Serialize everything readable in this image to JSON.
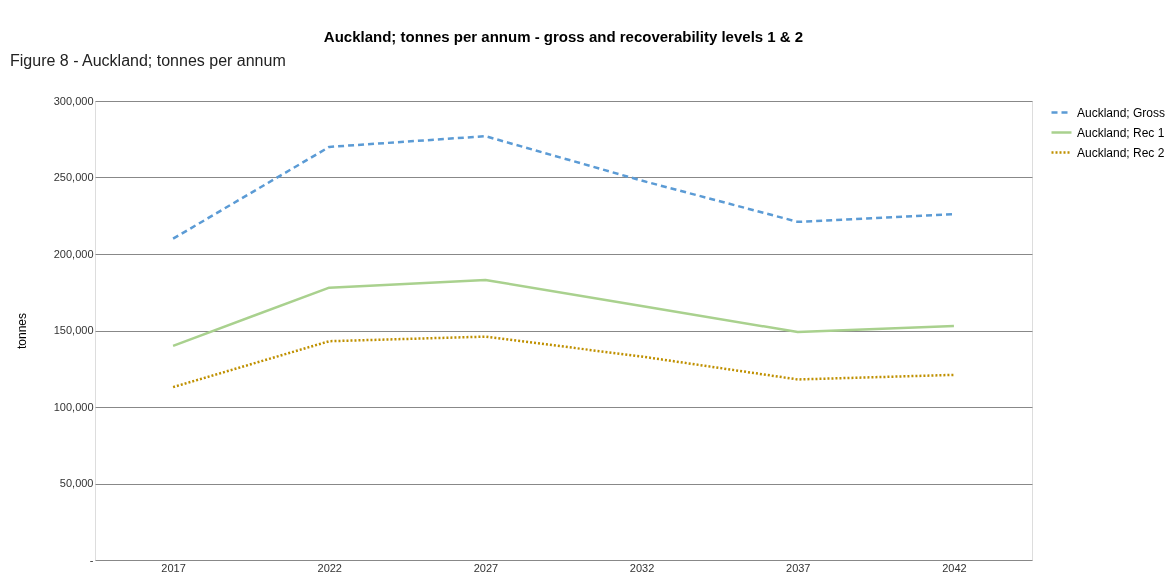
{
  "chart_data": {
    "type": "line",
    "title": "Auckland; tonnes per annum - gross and recoverability levels 1 & 2",
    "ylabel": "tonnes",
    "annotations": [
      "Figure 8 - Auckland; tonnes per annum"
    ],
    "categories": [
      "2017",
      "2022",
      "2027",
      "2032",
      "2037",
      "2042"
    ],
    "series": [
      {
        "name": "Auckland; Gross",
        "color": "#5b9bd5",
        "line_style": "dashed",
        "values": [
          210000,
          270000,
          277000,
          248000,
          221000,
          226000
        ]
      },
      {
        "name": "Auckland; Rec 1",
        "color": "#a9d18e",
        "line_style": "solid",
        "values": [
          140000,
          178000,
          183000,
          166000,
          149000,
          153000
        ]
      },
      {
        "name": "Auckland; Rec 2",
        "color": "#bf9000",
        "line_style": "dotted",
        "values": [
          113000,
          143000,
          146000,
          133000,
          118000,
          121000
        ]
      }
    ],
    "ylim": [
      0,
      300000
    ],
    "yticks": [
      {
        "value": 0,
        "label": "-"
      },
      {
        "value": 50000,
        "label": "50,000"
      },
      {
        "value": 100000,
        "label": "100,000"
      },
      {
        "value": 150000,
        "label": "150,000"
      },
      {
        "value": 200000,
        "label": "200,000"
      },
      {
        "value": 250000,
        "label": "250,000"
      },
      {
        "value": 300000,
        "label": "300,000"
      }
    ],
    "grid": "y",
    "legend": "right",
    "marker": "none"
  }
}
